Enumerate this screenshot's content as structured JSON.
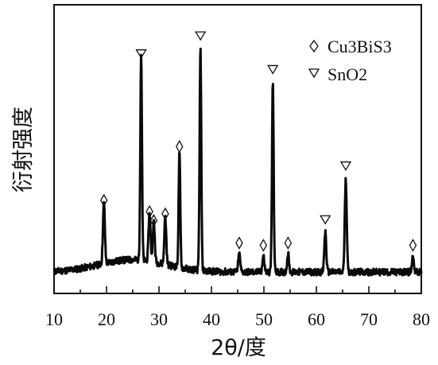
{
  "chart_data": {
    "type": "line",
    "xlabel": "2θ/度",
    "ylabel": "衍射强度",
    "xlim": [
      10,
      80
    ],
    "x_ticks": [
      "10",
      "20",
      "30",
      "40",
      "50",
      "60",
      "70",
      "80"
    ],
    "grid": false,
    "legend_position": "top-right",
    "legend": [
      {
        "marker": "diamond",
        "label": "Cu3BiS3"
      },
      {
        "marker": "triangle-down",
        "label": "SnO2"
      }
    ],
    "baseline": 0.035,
    "amorphous_hump": {
      "center": 25,
      "height": 0.055,
      "width": 9
    },
    "peaks": [
      {
        "x": 19.5,
        "intensity": 0.27,
        "phase": "Cu3BiS3"
      },
      {
        "x": 26.6,
        "intensity": 0.92,
        "phase": "SnO2"
      },
      {
        "x": 28.2,
        "intensity": 0.22,
        "phase": "Cu3BiS3"
      },
      {
        "x": 29.0,
        "intensity": 0.18,
        "phase": "Cu3BiS3"
      },
      {
        "x": 31.2,
        "intensity": 0.21,
        "phase": "Cu3BiS3"
      },
      {
        "x": 33.9,
        "intensity": 0.51,
        "phase": "Cu3BiS3"
      },
      {
        "x": 37.9,
        "intensity": 1.0,
        "phase": "SnO2"
      },
      {
        "x": 45.3,
        "intensity": 0.08,
        "phase": "Cu3BiS3"
      },
      {
        "x": 49.9,
        "intensity": 0.07,
        "phase": "Cu3BiS3"
      },
      {
        "x": 51.7,
        "intensity": 0.85,
        "phase": "SnO2"
      },
      {
        "x": 54.6,
        "intensity": 0.08,
        "phase": "Cu3BiS3"
      },
      {
        "x": 61.7,
        "intensity": 0.18,
        "phase": "SnO2"
      },
      {
        "x": 65.6,
        "intensity": 0.42,
        "phase": "SnO2"
      },
      {
        "x": 78.4,
        "intensity": 0.07,
        "phase": "Cu3BiS3"
      }
    ]
  }
}
